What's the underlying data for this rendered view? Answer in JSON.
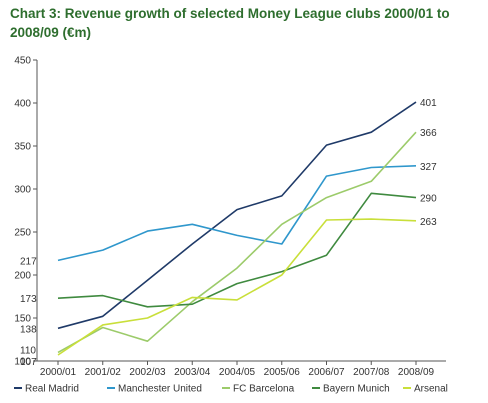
{
  "chart_data": {
    "type": "line",
    "title": "Chart 3: Revenue growth of selected Money League clubs 2000/01 to 2008/09 (€m)",
    "categories": [
      "2000/01",
      "2001/02",
      "2002/03",
      "2003/04",
      "2004/05",
      "2005/06",
      "2006/07",
      "2007/08",
      "2008/09"
    ],
    "ylim": [
      100,
      450
    ],
    "yticks": [
      100,
      150,
      200,
      250,
      300,
      350,
      400,
      450
    ],
    "grid": false,
    "legend_position": "bottom",
    "series": [
      {
        "name": "Real Madrid",
        "color": "#1f3a68",
        "values": [
          138,
          152,
          194,
          236,
          276,
          292,
          351,
          366,
          401
        ],
        "start_label": "138",
        "end_label": "401"
      },
      {
        "name": "Manchester United",
        "color": "#2f97cc",
        "values": [
          217,
          229,
          251,
          259,
          246,
          236,
          315,
          325,
          327
        ],
        "start_label": "217",
        "end_label": "327"
      },
      {
        "name": "FC Barcelona",
        "color": "#9ccb6a",
        "values": [
          110,
          139,
          123,
          169,
          208,
          259,
          290,
          309,
          366
        ],
        "start_label": "110",
        "end_label": "366"
      },
      {
        "name": "Bayern Munich",
        "color": "#3f8a3f",
        "values": [
          173,
          176,
          163,
          166,
          190,
          204,
          223,
          295,
          290
        ],
        "start_label": "173",
        "end_label": "290"
      },
      {
        "name": "Arsenal",
        "color": "#c9df3a",
        "values": [
          107,
          142,
          150,
          174,
          171,
          200,
          264,
          265,
          263
        ],
        "start_label": "107",
        "end_label": "263"
      }
    ]
  }
}
